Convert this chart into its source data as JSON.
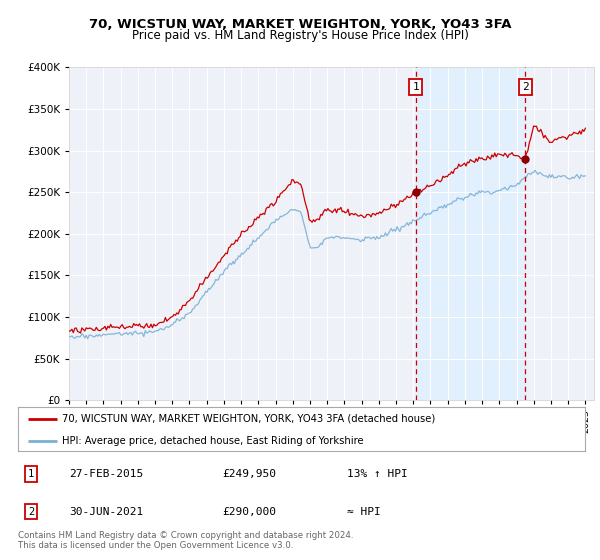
{
  "title_line1": "70, WICSTUN WAY, MARKET WEIGHTON, YORK, YO43 3FA",
  "title_line2": "Price paid vs. HM Land Registry's House Price Index (HPI)",
  "legend_label_red": "70, WICSTUN WAY, MARKET WEIGHTON, YORK, YO43 3FA (detached house)",
  "legend_label_blue": "HPI: Average price, detached house, East Riding of Yorkshire",
  "annotation1_date": "27-FEB-2015",
  "annotation1_price": "£249,950",
  "annotation1_hpi": "13% ↑ HPI",
  "annotation2_date": "30-JUN-2021",
  "annotation2_price": "£290,000",
  "annotation2_hpi": "≈ HPI",
  "footnote": "Contains HM Land Registry data © Crown copyright and database right 2024.\nThis data is licensed under the Open Government Licence v3.0.",
  "red_color": "#cc0000",
  "blue_color": "#7ab0d4",
  "vline_color": "#cc0000",
  "shade_color": "#ddeeff",
  "marker_color": "#8b0000",
  "ylim": [
    0,
    400000
  ],
  "xlim_left": 1995.0,
  "xlim_right": 2025.5,
  "sale1_year": 2015.15,
  "sale1_value": 249950,
  "sale2_year": 2021.5,
  "sale2_value": 290000
}
